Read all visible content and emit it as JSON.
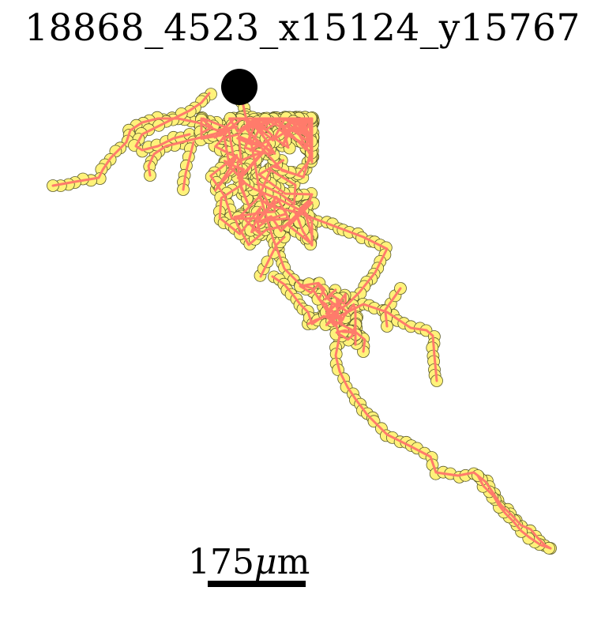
{
  "title": "18868_4523_x15124_y15767",
  "scale_bar": {
    "value": "175",
    "unit_symbol": "μ",
    "unit_suffix": "m"
  },
  "colors": {
    "trace": "#ff7b6b",
    "node_fill": "#fff27a",
    "node_stroke": "#5a5a2a",
    "soma": "#000000"
  },
  "soma_icon": "filled-black-circle"
}
